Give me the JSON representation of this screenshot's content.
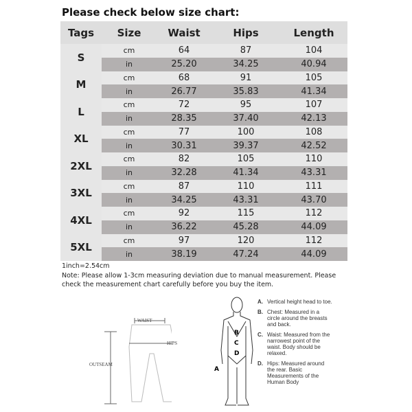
{
  "title": "Please check below size chart:",
  "headers": [
    "Tags",
    "Size",
    "Waist",
    "Hips",
    "Length"
  ],
  "rows": [
    {
      "tag": "S",
      "cm": [
        "64",
        "87",
        "104"
      ],
      "in": [
        "25.20",
        "34.25",
        "40.94"
      ]
    },
    {
      "tag": "M",
      "cm": [
        "68",
        "91",
        "105"
      ],
      "in": [
        "26.77",
        "35.83",
        "41.34"
      ]
    },
    {
      "tag": "L",
      "cm": [
        "72",
        "95",
        "107"
      ],
      "in": [
        "28.35",
        "37.40",
        "42.13"
      ]
    },
    {
      "tag": "XL",
      "cm": [
        "77",
        "100",
        "108"
      ],
      "in": [
        "30.31",
        "39.37",
        "42.52"
      ]
    },
    {
      "tag": "2XL",
      "cm": [
        "82",
        "105",
        "110"
      ],
      "in": [
        "32.28",
        "41.34",
        "43.31"
      ]
    },
    {
      "tag": "3XL",
      "cm": [
        "87",
        "110",
        "111"
      ],
      "in": [
        "34.25",
        "43.31",
        "43.70"
      ]
    },
    {
      "tag": "4XL",
      "cm": [
        "92",
        "115",
        "112"
      ],
      "in": [
        "36.22",
        "45.28",
        "44.09"
      ]
    },
    {
      "tag": "5XL",
      "cm": [
        "97",
        "120",
        "112"
      ],
      "in": [
        "38.19",
        "47.24",
        "44.09"
      ]
    }
  ],
  "units": {
    "cm": "cm",
    "in": "in"
  },
  "conversion": "1inch=2.54cm",
  "note": "Note: Please allow 1-3cm measuring deviation due to manual measurement. Please check the measurement chart carefully before you buy the item.",
  "pants_labels": {
    "waist": "WAIST",
    "hips": "HIPS",
    "outseam": "OUTSEAM"
  },
  "body_labels": {
    "a": "A",
    "b": "B",
    "c": "C",
    "d": "D"
  },
  "legend": [
    {
      "key": "A.",
      "text": "Vertical height head to toe."
    },
    {
      "key": "B.",
      "text": "Chest: Measured in a circle around the breasts and back."
    },
    {
      "key": "C.",
      "text": "Waist: Measured from the narrowest point of the waist. Body should be relaxed."
    },
    {
      "key": "D.",
      "text": "Hips: Measured around the rear. Basic Measurements of the Human Body"
    }
  ]
}
